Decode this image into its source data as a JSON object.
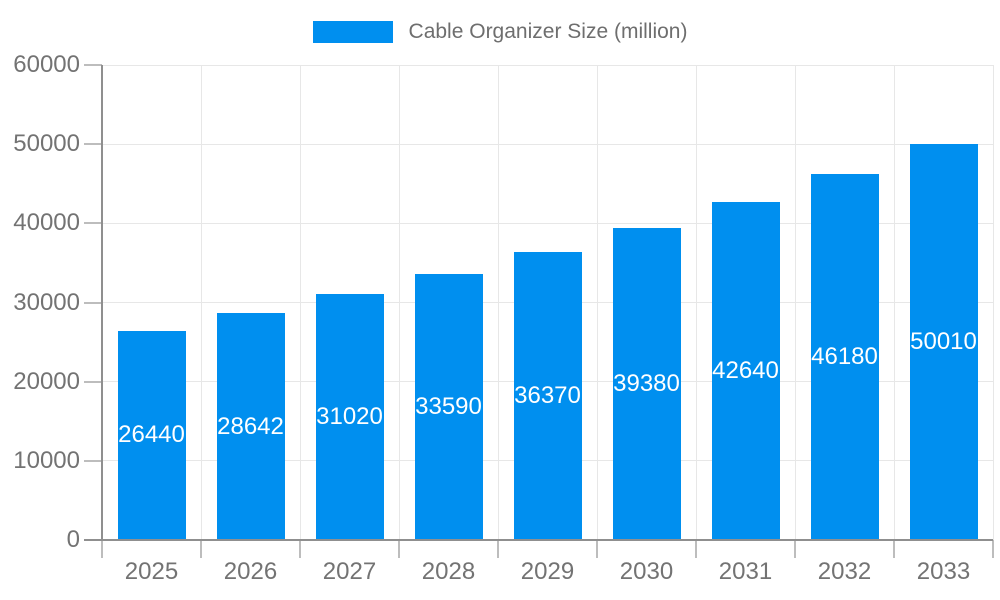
{
  "chart_data": {
    "type": "bar",
    "title": "Cable Organizer Size (million)",
    "categories": [
      "2025",
      "2026",
      "2027",
      "2028",
      "2029",
      "2030",
      "2031",
      "2032",
      "2033"
    ],
    "values": [
      26440,
      28642,
      31020,
      33590,
      36370,
      39380,
      42640,
      46180,
      50010
    ],
    "xlabel": "",
    "ylabel": "",
    "ylim": [
      0,
      60000
    ],
    "y_ticks": [
      0,
      10000,
      20000,
      30000,
      40000,
      50000,
      60000
    ],
    "grid": true,
    "legend_position": "top",
    "series_name": "Cable Organizer Size (million)",
    "colors": {
      "bar": "#008FEF",
      "bar_label": "#ffffff",
      "axis_text": "#737373",
      "legend_text": "#6e6e6e",
      "gridline": "#e7e7e7",
      "tick": "#bdbdbd",
      "axis_line": "#8f8f8f",
      "background": "#ffffff"
    }
  }
}
